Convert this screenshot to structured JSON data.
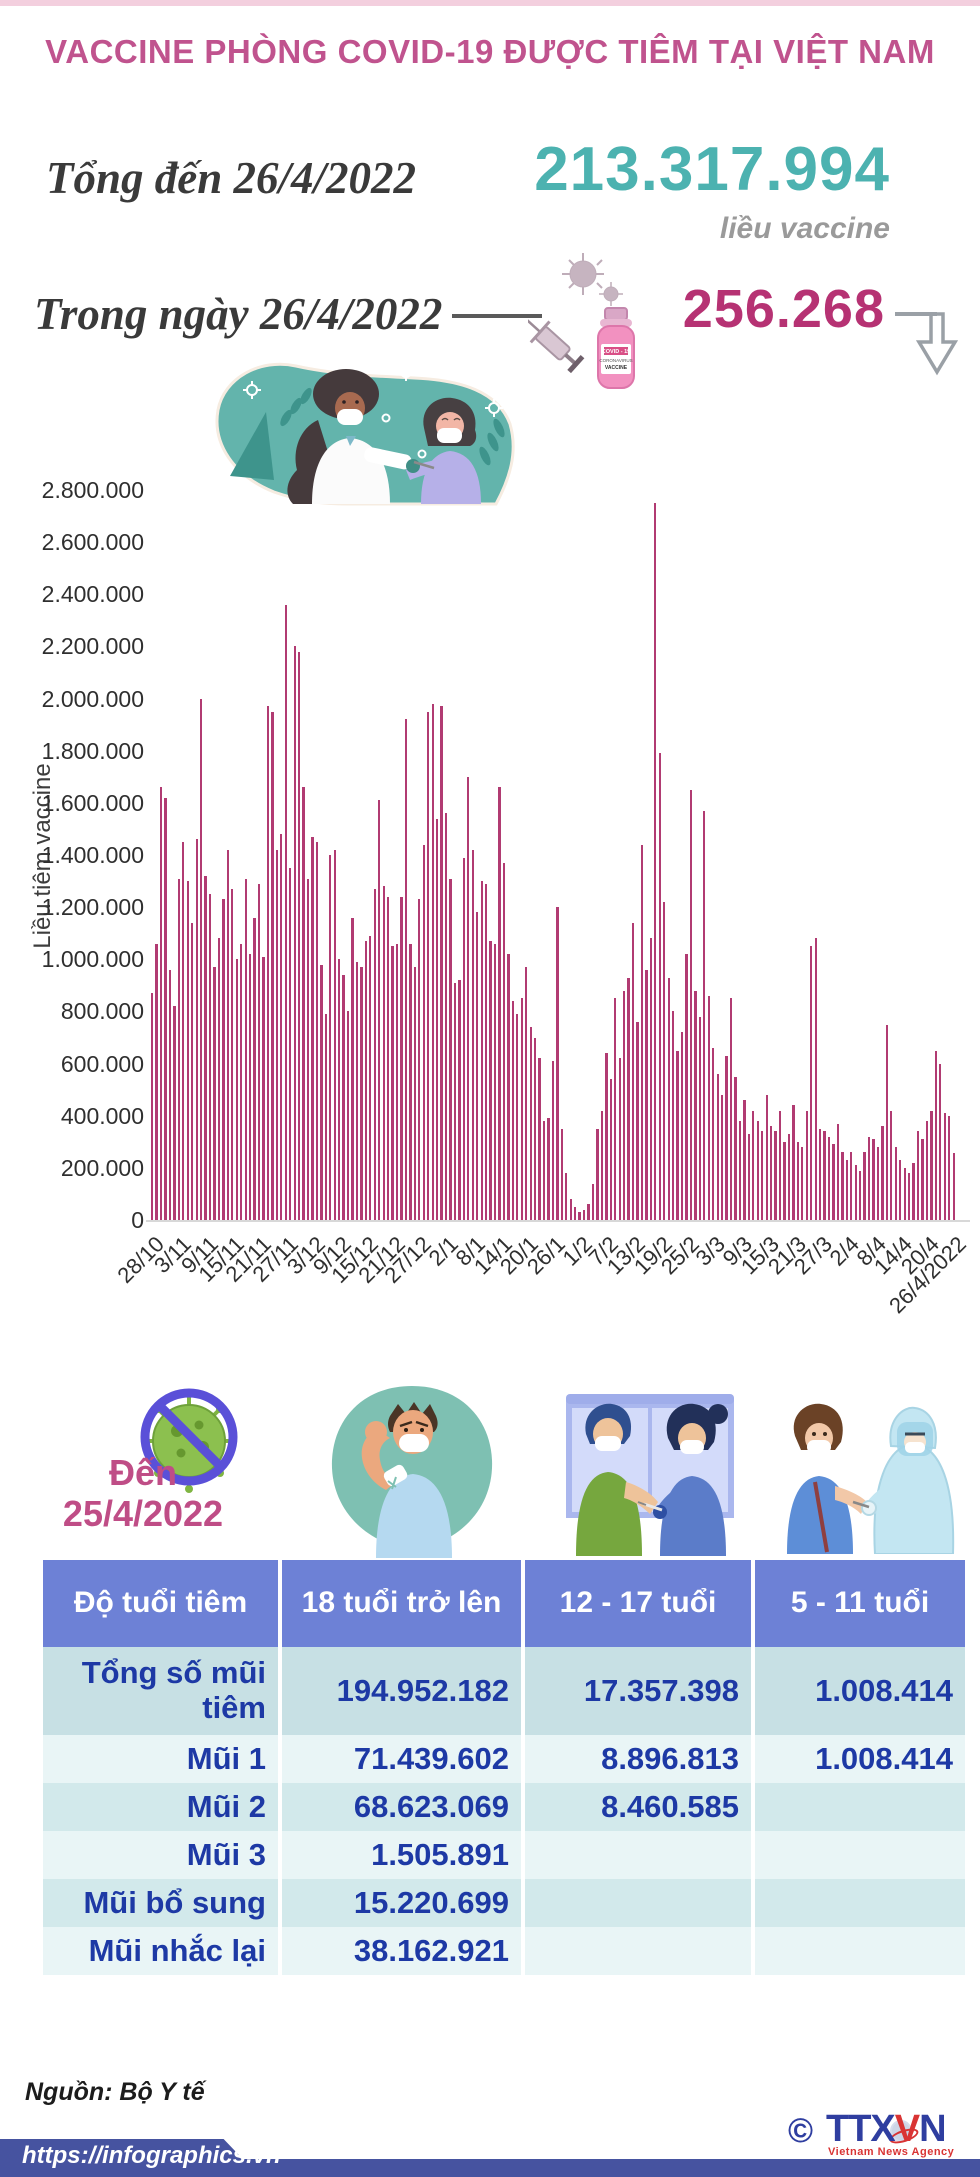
{
  "header": {
    "title": "VACCINE PHÒNG COVID-19 ĐƯỢC TIÊM TẠI VIỆT NAM"
  },
  "totals": {
    "total_label": "Tổng đến 26/4/2022",
    "total_value": "213.317.994",
    "total_unit": "liều vaccine",
    "daily_label": "Trong ngày 26/4/2022",
    "daily_value": "256.268"
  },
  "icons": {
    "vial_line1": "COVID - 19",
    "vial_line2": "CORONAVIRUS",
    "vial_line3": "VACCINE"
  },
  "chart_data": {
    "type": "bar",
    "title": "",
    "xlabel": "",
    "ylabel": "Liều tiêm vaccine",
    "ylim": [
      0,
      2800000
    ],
    "ytick_step": 200000,
    "grid": false,
    "legend": "none",
    "bar_color": "#b13b72",
    "xtick_every": 6,
    "xticklabels": [
      "28/10",
      "3/11",
      "9/11",
      "15/11",
      "21/11",
      "27/11",
      "3/12",
      "9/12",
      "15/12",
      "21/12",
      "27/12",
      "2/1",
      "8/1",
      "14/1",
      "20/1",
      "26/1",
      "1/2",
      "7/2",
      "13/2",
      "19/2",
      "25/2",
      "3/3",
      "9/3",
      "15/3",
      "21/3",
      "27/3",
      "2/4",
      "8/4",
      "14/4",
      "20/4",
      "26/4/2022"
    ],
    "values": [
      870000,
      1060000,
      1660000,
      1620000,
      960000,
      820000,
      1310000,
      1450000,
      1300000,
      1140000,
      1460000,
      2000000,
      1320000,
      1250000,
      970000,
      1080000,
      1230000,
      1420000,
      1270000,
      1000000,
      1060000,
      1310000,
      1020000,
      1160000,
      1290000,
      1010000,
      1970000,
      1950000,
      1420000,
      1480000,
      2360000,
      1350000,
      2200000,
      2180000,
      1660000,
      1310000,
      1470000,
      1450000,
      980000,
      790000,
      1400000,
      1420000,
      1000000,
      940000,
      800000,
      1160000,
      990000,
      970000,
      1070000,
      1090000,
      1270000,
      1610000,
      1280000,
      1240000,
      1050000,
      1060000,
      1240000,
      1920000,
      1060000,
      970000,
      1230000,
      1440000,
      1950000,
      1980000,
      1540000,
      1970000,
      1560000,
      1310000,
      910000,
      920000,
      1390000,
      1700000,
      1420000,
      1180000,
      1300000,
      1290000,
      1070000,
      1060000,
      1660000,
      1370000,
      1020000,
      840000,
      790000,
      850000,
      970000,
      740000,
      700000,
      620000,
      380000,
      390000,
      610000,
      1200000,
      350000,
      180000,
      80000,
      50000,
      30000,
      40000,
      60000,
      140000,
      350000,
      420000,
      640000,
      540000,
      850000,
      620000,
      880000,
      930000,
      1140000,
      760000,
      1440000,
      960000,
      1080000,
      2750000,
      1790000,
      1220000,
      930000,
      800000,
      650000,
      720000,
      1020000,
      1650000,
      880000,
      780000,
      1570000,
      860000,
      660000,
      560000,
      480000,
      630000,
      850000,
      550000,
      380000,
      460000,
      330000,
      420000,
      380000,
      340000,
      480000,
      360000,
      340000,
      420000,
      300000,
      330000,
      440000,
      300000,
      280000,
      420000,
      1050000,
      1080000,
      350000,
      340000,
      320000,
      290000,
      370000,
      260000,
      230000,
      260000,
      210000,
      190000,
      260000,
      320000,
      310000,
      280000,
      360000,
      750000,
      420000,
      280000,
      230000,
      200000,
      180000,
      220000,
      340000,
      310000,
      380000,
      420000,
      650000,
      600000,
      410000,
      400000,
      256268
    ]
  },
  "age_section": {
    "date_label_line1": "Đến",
    "date_label_line2": "25/4/2022",
    "table": {
      "columns": [
        "Độ tuổi tiêm",
        "18 tuổi trở lên",
        "12 - 17 tuổi",
        "5 - 11 tuổi"
      ],
      "rows": [
        {
          "label": "Tổng số mũi tiêm",
          "values": [
            "194.952.182",
            "17.357.398",
            "1.008.414"
          ]
        },
        {
          "label": "Mũi 1",
          "values": [
            "71.439.602",
            "8.896.813",
            "1.008.414"
          ]
        },
        {
          "label": "Mũi 2",
          "values": [
            "68.623.069",
            "8.460.585",
            ""
          ]
        },
        {
          "label": "Mũi 3",
          "values": [
            "1.505.891",
            "",
            ""
          ]
        },
        {
          "label": "Mũi bổ sung",
          "values": [
            "15.220.699",
            "",
            ""
          ]
        },
        {
          "label": "Mũi nhắc lại",
          "values": [
            "38.162.921",
            "",
            ""
          ]
        }
      ]
    }
  },
  "footer": {
    "source": "Nguồn: Bộ Y tế",
    "url": "https://infographics.vn",
    "copyright": "©",
    "agency": "TTXVN",
    "agency_v": "V",
    "agency_prefix": "TTX",
    "agency_suffix": "N",
    "agency_sub": "Vietnam News Agency"
  },
  "colors": {
    "title_pink": "#c0538e",
    "total_teal": "#4cb2b0",
    "daily_magenta": "#b63273",
    "bar": "#b13b72",
    "table_header_blue": "#6d81d6",
    "table_text_blue": "#1d39a5",
    "row_dark": "#c7e0e4",
    "row_mid": "#d2e9eb",
    "row_light": "#e9f5f6",
    "footer_blue": "#4653a0",
    "logo_red": "#d93434"
  }
}
